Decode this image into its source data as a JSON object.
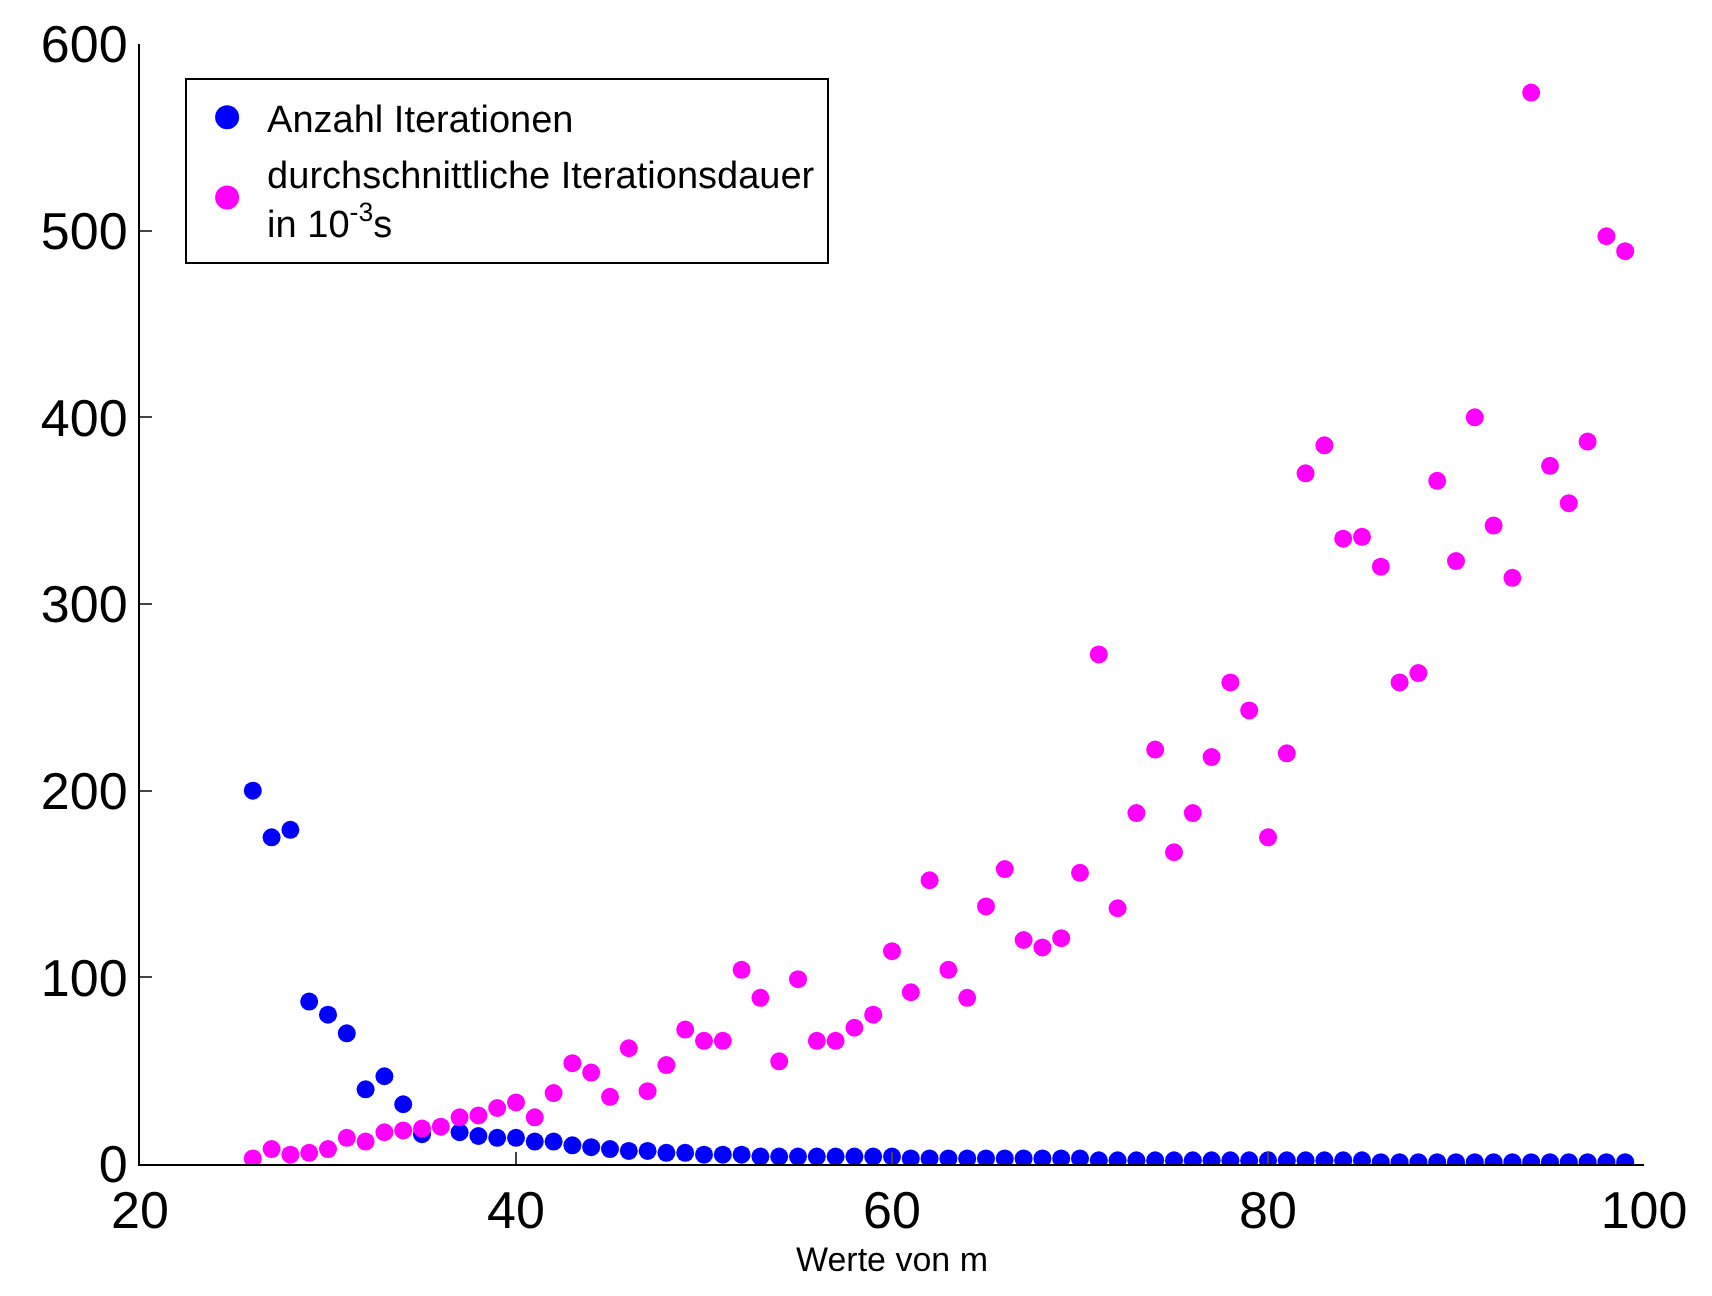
{
  "chart_data": {
    "type": "scatter",
    "xlabel": "Werte von m",
    "x": [
      26,
      27,
      28,
      29,
      30,
      31,
      32,
      33,
      34,
      35,
      36,
      37,
      38,
      39,
      40,
      41,
      42,
      43,
      44,
      45,
      46,
      47,
      48,
      49,
      50,
      51,
      52,
      53,
      54,
      55,
      56,
      57,
      58,
      59,
      60,
      61,
      62,
      63,
      64,
      65,
      66,
      67,
      68,
      69,
      70,
      71,
      72,
      73,
      74,
      75,
      76,
      77,
      78,
      79,
      80,
      81,
      82,
      83,
      84,
      85,
      86,
      87,
      88,
      89,
      90,
      91,
      92,
      93,
      94,
      95,
      96,
      97,
      98,
      99
    ],
    "series": [
      {
        "name": "Anzahl Iterationen",
        "color": "#0000ff",
        "values": [
          200,
          175,
          179,
          87,
          80,
          70,
          40,
          47,
          32,
          16,
          null,
          17,
          15,
          14,
          14,
          12,
          12,
          10,
          9,
          8,
          7,
          7,
          6,
          6,
          5,
          5,
          5,
          4,
          4,
          4,
          4,
          4,
          4,
          4,
          4,
          3,
          3,
          3,
          3,
          3,
          3,
          3,
          3,
          3,
          3,
          2,
          2,
          2,
          2,
          2,
          2,
          2,
          2,
          2,
          2,
          2,
          2,
          2,
          2,
          2,
          1,
          1,
          1,
          1,
          1,
          1,
          1,
          1,
          1,
          1,
          1,
          1,
          1,
          1
        ]
      },
      {
        "name": "durchschnittliche Iterationsdauer\nin 10$^{-3}$s",
        "color": "#ff00ff",
        "values": [
          3,
          8,
          5,
          6,
          8,
          14,
          12,
          17,
          18,
          19,
          20,
          25,
          26,
          30,
          33,
          25,
          38,
          54,
          49,
          36,
          62,
          39,
          53,
          72,
          66,
          66,
          104,
          89,
          55,
          99,
          66,
          66,
          73,
          80,
          114,
          92,
          152,
          104,
          89,
          138,
          158,
          120,
          116,
          121,
          156,
          273,
          137,
          188,
          222,
          167,
          188,
          218,
          258,
          243,
          175,
          220,
          370,
          385,
          335,
          336,
          320,
          258,
          263,
          366,
          323,
          400,
          342,
          314,
          574,
          374,
          354,
          387,
          497,
          489
        ]
      }
    ],
    "xlim": [
      20,
      100
    ],
    "xticks": [
      20,
      40,
      60,
      80,
      100
    ],
    "ylim": [
      0,
      600
    ],
    "yticks": [
      0,
      100,
      200,
      300,
      400,
      500,
      600
    ],
    "grid": false,
    "legend": "top left",
    "marker": "circle"
  }
}
